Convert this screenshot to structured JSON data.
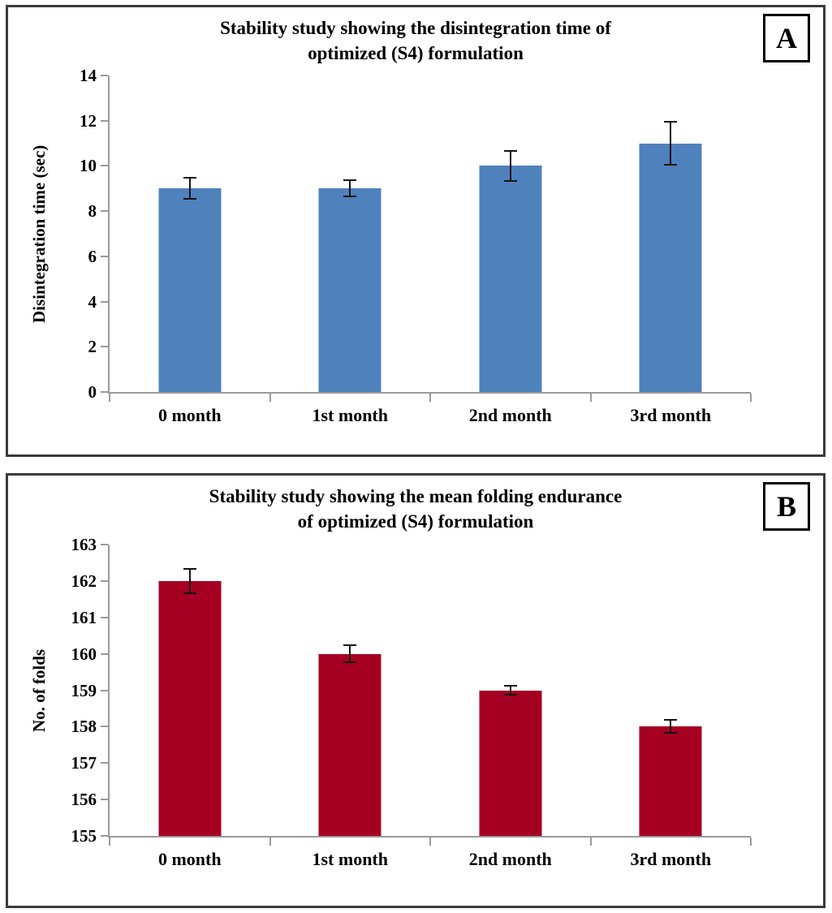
{
  "figure": {
    "background_color": "#FFFFFF",
    "panel_border_color": "#3B3B3B",
    "axis_color": "#9A9A9A",
    "error_bar_color": "#141414",
    "text_color": "#000000"
  },
  "chart_data": [
    {
      "type": "bar",
      "panel_label": "A",
      "title": "Stability study showing the disintegration time of optimized (S4) formulation",
      "title_lines": [
        "Stability study showing the disintegration time of",
        "optimized (S4) formulation"
      ],
      "xlabel": "",
      "ylabel": "Disintegration time (sec)",
      "categories": [
        "0 month",
        "1st month",
        "2nd month",
        "3rd month"
      ],
      "values": [
        9,
        9,
        10,
        11
      ],
      "errors": [
        0.5,
        0.4,
        0.7,
        1.0
      ],
      "ylim": [
        0,
        14
      ],
      "yticks": [
        0,
        2,
        4,
        6,
        8,
        10,
        12,
        14
      ],
      "bar_color": "#4F81BD",
      "grid": false,
      "legend": "none"
    },
    {
      "type": "bar",
      "panel_label": "B",
      "title": "Stability study showing the mean folding endurance of optimized (S4) formulation",
      "title_lines": [
        "Stability study showing the mean folding endurance",
        "of optimized (S4) formulation"
      ],
      "xlabel": "",
      "ylabel": "No. of folds",
      "categories": [
        "0 month",
        "1st month",
        "2nd month",
        "3rd month"
      ],
      "values": [
        162,
        160,
        159,
        158
      ],
      "errors": [
        0.35,
        0.25,
        0.15,
        0.2
      ],
      "ylim": [
        155,
        163
      ],
      "yticks": [
        155,
        156,
        157,
        158,
        159,
        160,
        161,
        162,
        163
      ],
      "bar_color": "#A50021",
      "grid": false,
      "legend": "none"
    }
  ]
}
